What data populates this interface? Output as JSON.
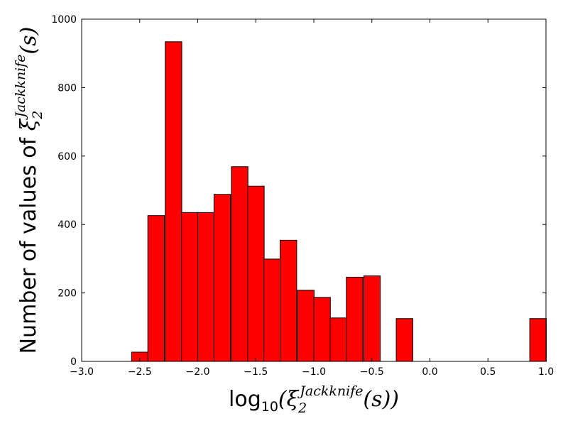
{
  "chart_data": {
    "type": "bar",
    "bin_width": 0.1425,
    "bars": [
      {
        "x0": -2.57,
        "value": 27
      },
      {
        "x0": -2.43,
        "value": 426
      },
      {
        "x0": -2.28,
        "value": 934
      },
      {
        "x0": -2.14,
        "value": 435
      },
      {
        "x0": -2.0,
        "value": 435
      },
      {
        "x0": -1.86,
        "value": 488
      },
      {
        "x0": -1.71,
        "value": 569
      },
      {
        "x0": -1.57,
        "value": 512
      },
      {
        "x0": -1.43,
        "value": 299
      },
      {
        "x0": -1.29,
        "value": 354
      },
      {
        "x0": -1.14,
        "value": 208
      },
      {
        "x0": -1.0,
        "value": 187
      },
      {
        "x0": -0.86,
        "value": 127
      },
      {
        "x0": -0.72,
        "value": 246
      },
      {
        "x0": -0.57,
        "value": 250
      },
      {
        "x0": -0.29,
        "value": 125
      },
      {
        "x0": 0.86,
        "value": 125
      }
    ],
    "xlim": [
      -3.0,
      1.0
    ],
    "ylim": [
      0,
      1000
    ],
    "x_ticks": [
      "−3.0",
      "−2.5",
      "−2.0",
      "−1.5",
      "−1.0",
      "−0.5",
      "0.0",
      "0.5",
      "1.0"
    ],
    "y_ticks": [
      "0",
      "200",
      "400",
      "600",
      "800",
      "1000"
    ],
    "xlabel": {
      "prefix": "log",
      "sub": "10",
      "open": "(",
      "xi": "ξ",
      "xi_sub": "2",
      "xi_sup": "Jackknife",
      "arg": "(s))"
    },
    "ylabel": {
      "prefix": "Number of values of ",
      "xi": "ξ",
      "xi_sub": "2",
      "xi_sup": "Jackknife",
      "arg": "(s)"
    },
    "bar_color": "#ff0000",
    "edge_color": "#000000",
    "grid": false
  }
}
